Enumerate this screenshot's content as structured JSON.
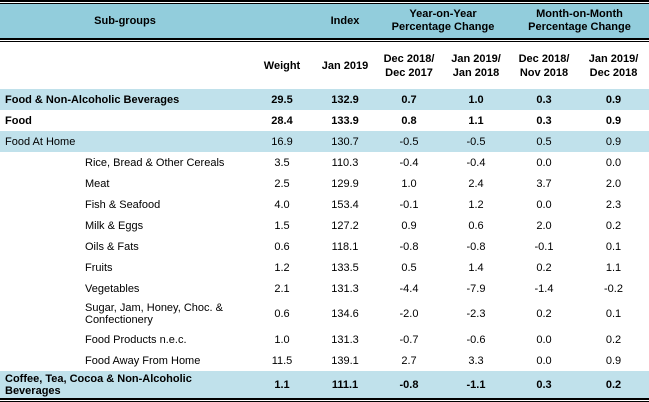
{
  "colors": {
    "header_bg": "#92CDDC",
    "row_highlight_bg": "#C0E1EB",
    "rule_line": "#000000",
    "text": "#000000"
  },
  "chart_data": {
    "type": "table",
    "title": "Sub-groups index table, Jan 2019",
    "header_row1": {
      "subgroups": "Sub-groups",
      "index": "Index",
      "yoy": "Year-on-Year\nPercentage Change",
      "mom": "Month-on-Month\nPercentage Change"
    },
    "header_row2": {
      "weight": "Weight",
      "index_month": "Jan 2019",
      "yoy_prev": "Dec 2018/\nDec 2017",
      "yoy_curr": "Jan 2019/\nJan 2018",
      "mom_prev": "Dec 2018/\nNov 2018",
      "mom_curr": "Jan 2019/\nDec 2018"
    },
    "value_columns": [
      "Weight",
      "Index Jan 2019",
      "YoY Dec 2018/Dec 2017",
      "YoY Jan 2019/Jan 2018",
      "MoM Dec 2018/Nov 2018",
      "MoM Jan 2019/Dec 2018"
    ],
    "rows": [
      {
        "label": "Food & Non-Alcoholic Beverages",
        "indent": 0,
        "bold": true,
        "highlight": true,
        "values": [
          "29.5",
          "132.9",
          "0.7",
          "1.0",
          "0.3",
          "0.9"
        ]
      },
      {
        "label": "Food",
        "indent": 0,
        "bold": true,
        "highlight": false,
        "values": [
          "28.4",
          "133.9",
          "0.8",
          "1.1",
          "0.3",
          "0.9"
        ]
      },
      {
        "label": "Food At Home",
        "indent": 0,
        "bold": false,
        "highlight": true,
        "values": [
          "16.9",
          "130.7",
          "-0.5",
          "-0.5",
          "0.5",
          "0.9"
        ]
      },
      {
        "label": "Rice, Bread & Other Cereals",
        "indent": 1,
        "bold": false,
        "highlight": false,
        "values": [
          "3.5",
          "110.3",
          "-0.4",
          "-0.4",
          "0.0",
          "0.0"
        ]
      },
      {
        "label": "Meat",
        "indent": 1,
        "bold": false,
        "highlight": false,
        "values": [
          "2.5",
          "129.9",
          "1.0",
          "2.4",
          "3.7",
          "2.0"
        ]
      },
      {
        "label": "Fish & Seafood",
        "indent": 1,
        "bold": false,
        "highlight": false,
        "values": [
          "4.0",
          "153.4",
          "-0.1",
          "1.2",
          "0.0",
          "2.3"
        ]
      },
      {
        "label": "Milk & Eggs",
        "indent": 1,
        "bold": false,
        "highlight": false,
        "values": [
          "1.5",
          "127.2",
          "0.9",
          "0.6",
          "2.0",
          "0.2"
        ]
      },
      {
        "label": "Oils & Fats",
        "indent": 1,
        "bold": false,
        "highlight": false,
        "values": [
          "0.6",
          "118.1",
          "-0.8",
          "-0.8",
          "-0.1",
          "0.1"
        ]
      },
      {
        "label": "Fruits",
        "indent": 1,
        "bold": false,
        "highlight": false,
        "values": [
          "1.2",
          "133.5",
          "0.5",
          "1.4",
          "0.2",
          "1.1"
        ]
      },
      {
        "label": "Vegetables",
        "indent": 1,
        "bold": false,
        "highlight": false,
        "values": [
          "2.1",
          "131.3",
          "-4.4",
          "-7.9",
          "-1.4",
          "-0.2"
        ]
      },
      {
        "label": "Sugar, Jam, Honey, Choc. &\nConfectionery",
        "indent": 1,
        "bold": false,
        "highlight": false,
        "values": [
          "0.6",
          "134.6",
          "-2.0",
          "-2.3",
          "0.2",
          "0.1"
        ]
      },
      {
        "label": "Food Products n.e.c.",
        "indent": 1,
        "bold": false,
        "highlight": false,
        "values": [
          "1.0",
          "131.3",
          "-0.7",
          "-0.6",
          "0.0",
          "0.2"
        ]
      },
      {
        "label": "Food Away From Home",
        "indent": 1,
        "bold": false,
        "highlight": false,
        "values": [
          "11.5",
          "139.1",
          "2.7",
          "3.3",
          "0.0",
          "0.9"
        ]
      },
      {
        "label": "Coffee, Tea, Cocoa & Non-Alcoholic\nBeverages",
        "indent": 0,
        "bold": true,
        "highlight": true,
        "values": [
          "1.1",
          "111.1",
          "-0.8",
          "-1.1",
          "0.3",
          "0.2"
        ]
      }
    ]
  }
}
